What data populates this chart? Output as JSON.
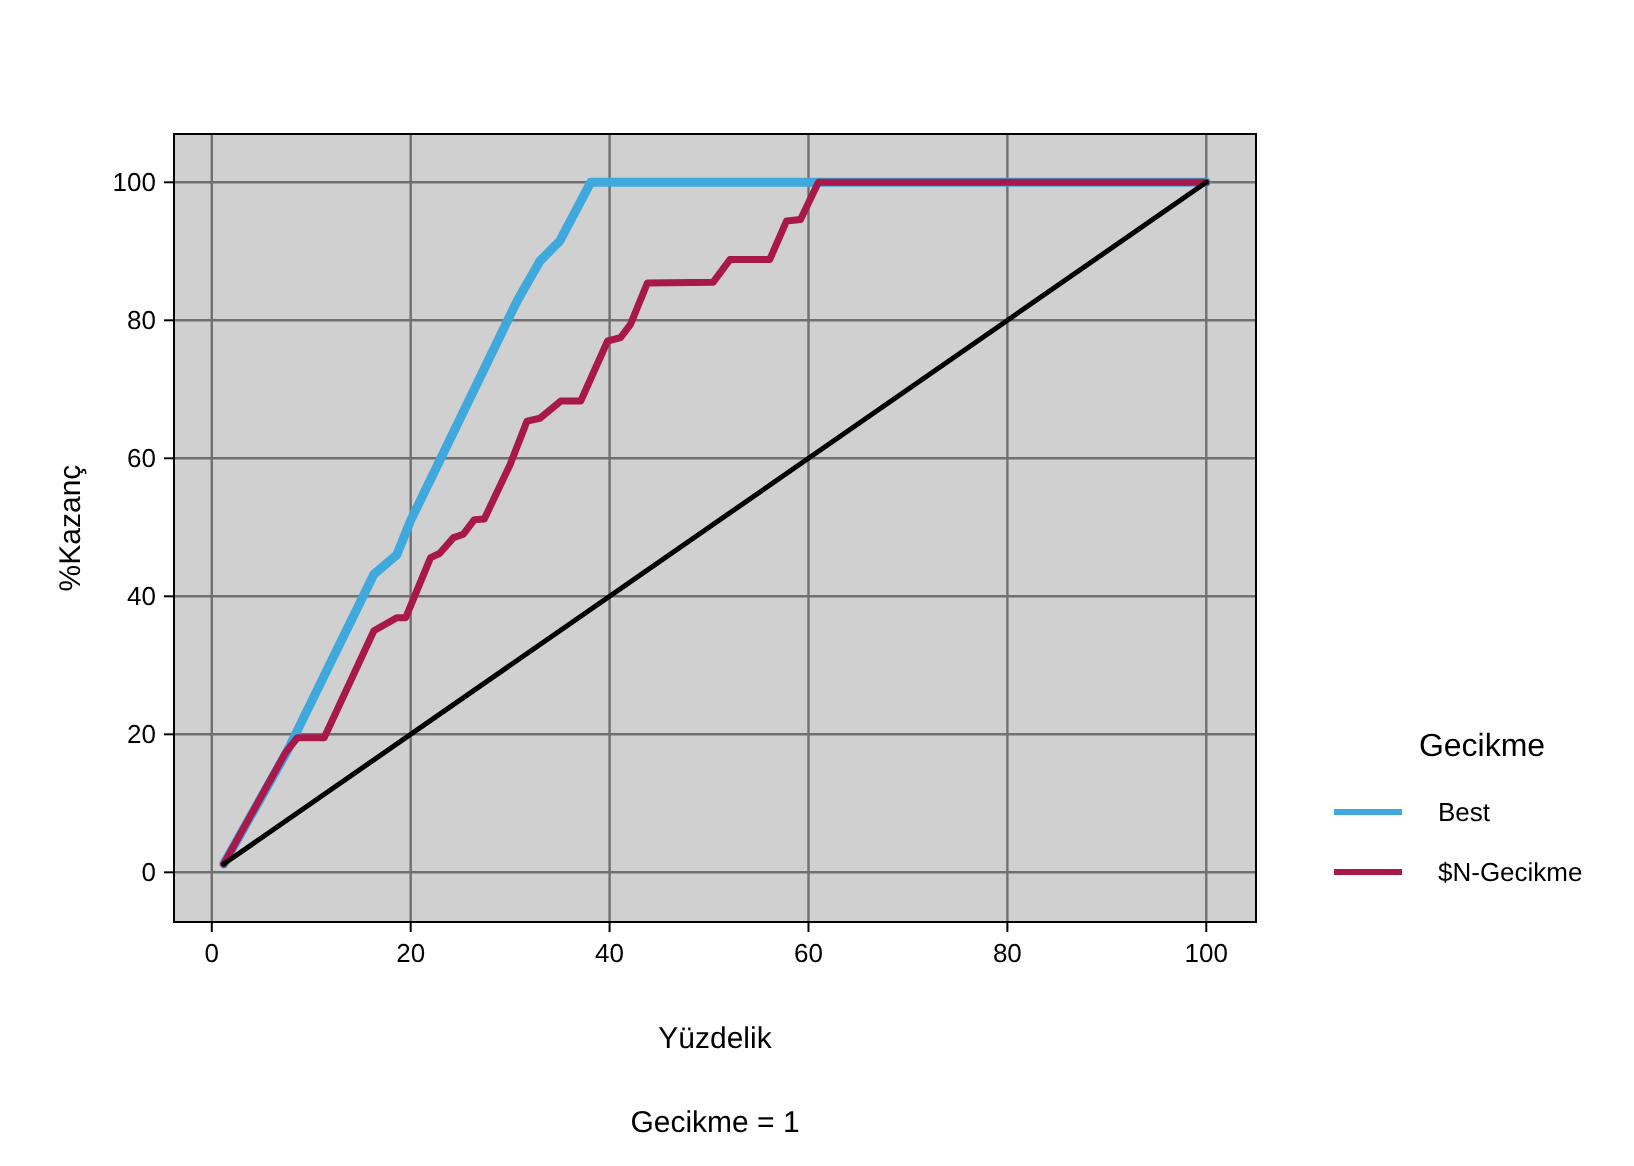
{
  "chart_data": {
    "type": "line",
    "xlabel": "Yüzdelik",
    "ylabel": "%Kazanç",
    "legend_title": "Gecikme",
    "annotations": [
      "Gecikme = 1"
    ],
    "xlim": [
      -3.8,
      105
    ],
    "ylim": [
      -7.2,
      107
    ],
    "xticks": [
      0,
      20,
      40,
      60,
      80,
      100
    ],
    "yticks": [
      0,
      20,
      40,
      60,
      80,
      100
    ],
    "grid": true,
    "legend": "right",
    "marker": "none",
    "line_style": "solid",
    "series": [
      {
        "name": "Best",
        "color": "#3fa8dc",
        "x": [
          1.2,
          7.6,
          16.3,
          18.6,
          20,
          30.7,
          33,
          35,
          38.1,
          100
        ],
        "values": [
          1.2,
          17.6,
          43.2,
          46,
          51,
          82.8,
          88.6,
          91.5,
          100,
          100
        ]
      },
      {
        "name": "$N-Gecikme",
        "color": "#a8184a",
        "x": [
          1.2,
          7.4,
          8.6,
          11.3,
          16.3,
          18.6,
          19.5,
          22,
          22.9,
          24.3,
          25.3,
          26.4,
          27.4,
          30,
          31.7,
          33,
          35.1,
          37.1,
          39.8,
          41.1,
          42.1,
          43.8,
          50.4,
          52.1,
          56.1,
          57.8,
          59.2,
          61,
          100
        ],
        "values": [
          1.2,
          17.3,
          19.5,
          19.5,
          35,
          36.9,
          36.9,
          45.6,
          46.2,
          48.5,
          49,
          51.1,
          51.2,
          59.1,
          65.4,
          65.8,
          68.3,
          68.3,
          77,
          77.5,
          79.4,
          85.4,
          85.5,
          88.8,
          88.8,
          94.4,
          94.6,
          100,
          100
        ]
      },
      {
        "color": "#000000",
        "x": [
          1.2,
          100
        ],
        "values": [
          1.2,
          100
        ]
      }
    ]
  }
}
